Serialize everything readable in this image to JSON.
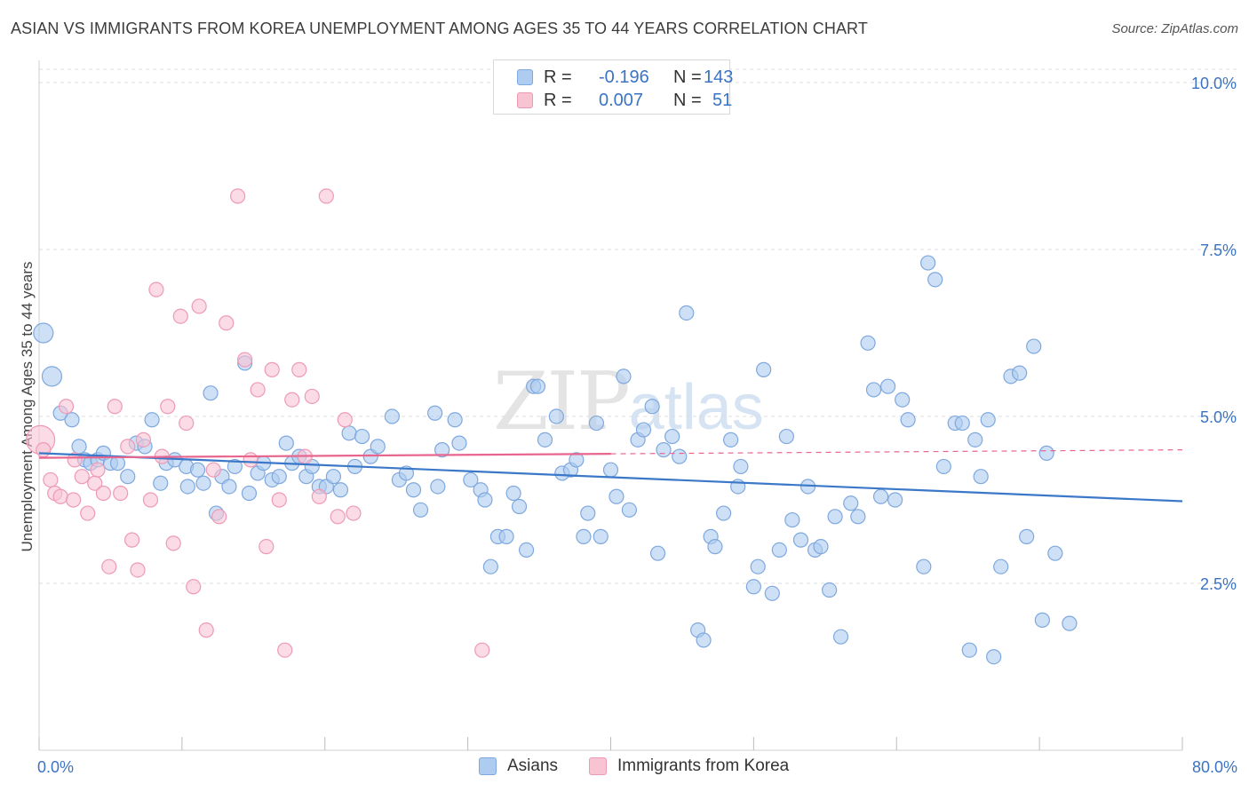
{
  "title": "ASIAN VS IMMIGRANTS FROM KOREA UNEMPLOYMENT AMONG AGES 35 TO 44 YEARS CORRELATION CHART",
  "source": "Source: ZipAtlas.com",
  "watermark": {
    "zip": "ZIP",
    "atlas": "atlas"
  },
  "legend_top": {
    "rows": [
      {
        "swatch_color": "#aecbf0",
        "r_label": "R =",
        "r_value": "-0.196",
        "n_label": "N =",
        "n_value": "143"
      },
      {
        "swatch_color": "#f8c3d3",
        "r_label": "R =",
        "r_value": "0.007",
        "n_label": "N =",
        "n_value": "51"
      }
    ]
  },
  "legend_bottom": {
    "items": [
      {
        "label": "Asians",
        "color": "#aecbf0"
      },
      {
        "label": "Immigrants from Korea",
        "color": "#f8c3d3"
      }
    ]
  },
  "colors": {
    "blue": "#3b78c8",
    "blue_fill": "#aecbf0",
    "pink": "#e8658e",
    "pink_fill": "#f8c3d3",
    "grid": "#dddddd",
    "tick_label": "#3b73c4"
  },
  "chart_data": {
    "type": "scatter",
    "title": "ASIAN VS IMMIGRANTS FROM KOREA UNEMPLOYMENT AMONG AGES 35 TO 44 YEARS CORRELATION CHART",
    "xlabel": "",
    "ylabel": "Unemployment Among Ages 35 to 44 years",
    "xlim": [
      0,
      80
    ],
    "ylim": [
      0,
      10.2
    ],
    "x_tick_labels": [
      {
        "value": 0,
        "label": "0.0%"
      },
      {
        "value": 80,
        "label": "80.0%"
      }
    ],
    "y_tick_labels": [
      {
        "value": 2.5,
        "label": "2.5%"
      },
      {
        "value": 5.0,
        "label": "5.0%"
      },
      {
        "value": 7.5,
        "label": "7.5%"
      },
      {
        "value": 10.0,
        "label": "10.0%"
      }
    ],
    "series": [
      {
        "name": "Asians",
        "r": -0.196,
        "n": 143,
        "trend": {
          "x": [
            0,
            80
          ],
          "y": [
            4.45,
            3.73
          ],
          "dashed_from": null
        },
        "points": [
          [
            0.3,
            6.25
          ],
          [
            0.9,
            5.6
          ],
          [
            1.5,
            5.05
          ],
          [
            2.3,
            4.95
          ],
          [
            2.8,
            4.55
          ],
          [
            3.2,
            4.35
          ],
          [
            3.6,
            4.3
          ],
          [
            4.1,
            4.35
          ],
          [
            4.5,
            4.45
          ],
          [
            5.0,
            4.3
          ],
          [
            5.5,
            4.3
          ],
          [
            6.2,
            4.1
          ],
          [
            6.8,
            4.6
          ],
          [
            7.4,
            4.55
          ],
          [
            7.9,
            4.95
          ],
          [
            8.5,
            4.0
          ],
          [
            8.9,
            4.3
          ],
          [
            9.5,
            4.35
          ],
          [
            10.3,
            4.25
          ],
          [
            10.4,
            3.95
          ],
          [
            11.1,
            4.2
          ],
          [
            11.5,
            4.0
          ],
          [
            12.0,
            5.35
          ],
          [
            12.4,
            3.55
          ],
          [
            12.8,
            4.1
          ],
          [
            13.3,
            3.95
          ],
          [
            13.7,
            4.25
          ],
          [
            14.4,
            5.8
          ],
          [
            14.7,
            3.85
          ],
          [
            15.3,
            4.15
          ],
          [
            15.7,
            4.3
          ],
          [
            16.3,
            4.05
          ],
          [
            16.8,
            4.1
          ],
          [
            17.3,
            4.6
          ],
          [
            17.7,
            4.3
          ],
          [
            18.2,
            4.4
          ],
          [
            18.7,
            4.1
          ],
          [
            19.1,
            4.25
          ],
          [
            19.6,
            3.95
          ],
          [
            20.1,
            3.95
          ],
          [
            20.6,
            4.1
          ],
          [
            21.1,
            3.9
          ],
          [
            21.7,
            4.75
          ],
          [
            22.1,
            4.25
          ],
          [
            22.6,
            4.7
          ],
          [
            23.2,
            4.4
          ],
          [
            23.7,
            4.55
          ],
          [
            24.7,
            5.0
          ],
          [
            25.2,
            4.05
          ],
          [
            25.7,
            4.15
          ],
          [
            26.2,
            3.9
          ],
          [
            26.7,
            3.6
          ],
          [
            27.7,
            5.05
          ],
          [
            27.9,
            3.95
          ],
          [
            28.2,
            4.5
          ],
          [
            29.1,
            4.95
          ],
          [
            29.4,
            4.6
          ],
          [
            30.2,
            4.05
          ],
          [
            30.9,
            3.9
          ],
          [
            31.2,
            3.75
          ],
          [
            31.6,
            2.75
          ],
          [
            32.1,
            3.2
          ],
          [
            32.7,
            3.2
          ],
          [
            33.2,
            3.85
          ],
          [
            33.6,
            3.65
          ],
          [
            34.1,
            3.0
          ],
          [
            34.6,
            5.45
          ],
          [
            34.9,
            5.45
          ],
          [
            35.4,
            4.65
          ],
          [
            36.2,
            5.0
          ],
          [
            36.6,
            4.15
          ],
          [
            37.2,
            4.2
          ],
          [
            37.6,
            4.35
          ],
          [
            38.1,
            3.2
          ],
          [
            38.4,
            3.55
          ],
          [
            39.0,
            4.9
          ],
          [
            39.3,
            3.2
          ],
          [
            40.0,
            4.2
          ],
          [
            40.4,
            3.8
          ],
          [
            40.9,
            5.6
          ],
          [
            41.3,
            3.6
          ],
          [
            41.9,
            4.65
          ],
          [
            42.3,
            4.8
          ],
          [
            42.9,
            5.15
          ],
          [
            43.3,
            2.95
          ],
          [
            43.7,
            4.5
          ],
          [
            44.3,
            4.7
          ],
          [
            44.8,
            4.4
          ],
          [
            45.3,
            6.55
          ],
          [
            46.1,
            1.8
          ],
          [
            46.5,
            1.65
          ],
          [
            47.0,
            3.2
          ],
          [
            47.3,
            3.05
          ],
          [
            47.9,
            3.55
          ],
          [
            48.4,
            4.65
          ],
          [
            48.9,
            3.95
          ],
          [
            49.1,
            4.25
          ],
          [
            50.0,
            2.45
          ],
          [
            50.3,
            2.75
          ],
          [
            50.7,
            5.7
          ],
          [
            51.3,
            2.35
          ],
          [
            51.8,
            3.0
          ],
          [
            52.3,
            4.7
          ],
          [
            52.7,
            3.45
          ],
          [
            53.3,
            3.15
          ],
          [
            53.8,
            3.95
          ],
          [
            54.3,
            3.0
          ],
          [
            54.7,
            3.05
          ],
          [
            55.3,
            2.4
          ],
          [
            55.7,
            3.5
          ],
          [
            56.1,
            1.7
          ],
          [
            56.8,
            3.7
          ],
          [
            57.3,
            3.5
          ],
          [
            58.0,
            6.1
          ],
          [
            58.4,
            5.4
          ],
          [
            58.9,
            3.8
          ],
          [
            59.4,
            5.45
          ],
          [
            59.9,
            3.75
          ],
          [
            60.4,
            5.25
          ],
          [
            60.8,
            4.95
          ],
          [
            61.9,
            2.75
          ],
          [
            62.2,
            7.3
          ],
          [
            62.7,
            7.05
          ],
          [
            63.3,
            4.25
          ],
          [
            64.1,
            4.9
          ],
          [
            64.6,
            4.9
          ],
          [
            65.1,
            1.5
          ],
          [
            65.5,
            4.65
          ],
          [
            65.9,
            4.1
          ],
          [
            66.4,
            4.95
          ],
          [
            66.8,
            1.4
          ],
          [
            67.3,
            2.75
          ],
          [
            68.0,
            5.6
          ],
          [
            68.6,
            5.65
          ],
          [
            69.1,
            3.2
          ],
          [
            69.6,
            6.05
          ],
          [
            70.2,
            1.95
          ],
          [
            70.5,
            4.45
          ],
          [
            71.1,
            2.95
          ],
          [
            72.1,
            1.9
          ]
        ]
      },
      {
        "name": "Immigrants from Korea",
        "r": 0.007,
        "n": 51,
        "trend": {
          "x": [
            0,
            80
          ],
          "y": [
            4.38,
            4.5
          ],
          "dashed_from": 40
        },
        "points": [
          [
            0.1,
            4.65
          ],
          [
            0.3,
            4.5
          ],
          [
            0.8,
            4.05
          ],
          [
            1.1,
            3.85
          ],
          [
            1.5,
            3.8
          ],
          [
            1.9,
            5.15
          ],
          [
            2.4,
            3.75
          ],
          [
            2.5,
            4.35
          ],
          [
            3.0,
            4.1
          ],
          [
            3.4,
            3.55
          ],
          [
            3.9,
            4.0
          ],
          [
            4.1,
            4.2
          ],
          [
            4.5,
            3.85
          ],
          [
            4.9,
            2.75
          ],
          [
            5.3,
            5.15
          ],
          [
            5.7,
            3.85
          ],
          [
            6.2,
            4.55
          ],
          [
            6.5,
            3.15
          ],
          [
            6.9,
            2.7
          ],
          [
            7.3,
            4.65
          ],
          [
            7.8,
            3.75
          ],
          [
            8.2,
            6.9
          ],
          [
            8.6,
            4.4
          ],
          [
            9.0,
            5.15
          ],
          [
            9.4,
            3.1
          ],
          [
            9.9,
            6.5
          ],
          [
            10.3,
            4.9
          ],
          [
            10.8,
            2.45
          ],
          [
            11.2,
            6.65
          ],
          [
            11.7,
            1.8
          ],
          [
            12.2,
            4.2
          ],
          [
            12.6,
            3.5
          ],
          [
            13.1,
            6.4
          ],
          [
            13.9,
            8.3
          ],
          [
            14.4,
            5.85
          ],
          [
            14.8,
            4.35
          ],
          [
            15.3,
            5.4
          ],
          [
            15.9,
            3.05
          ],
          [
            16.3,
            5.7
          ],
          [
            16.8,
            3.75
          ],
          [
            17.2,
            1.5
          ],
          [
            17.7,
            5.25
          ],
          [
            18.2,
            5.7
          ],
          [
            18.6,
            4.4
          ],
          [
            19.1,
            5.3
          ],
          [
            19.6,
            3.8
          ],
          [
            20.1,
            8.3
          ],
          [
            20.9,
            3.5
          ],
          [
            21.4,
            4.95
          ],
          [
            22.0,
            3.55
          ],
          [
            31.0,
            1.5
          ]
        ]
      }
    ]
  }
}
